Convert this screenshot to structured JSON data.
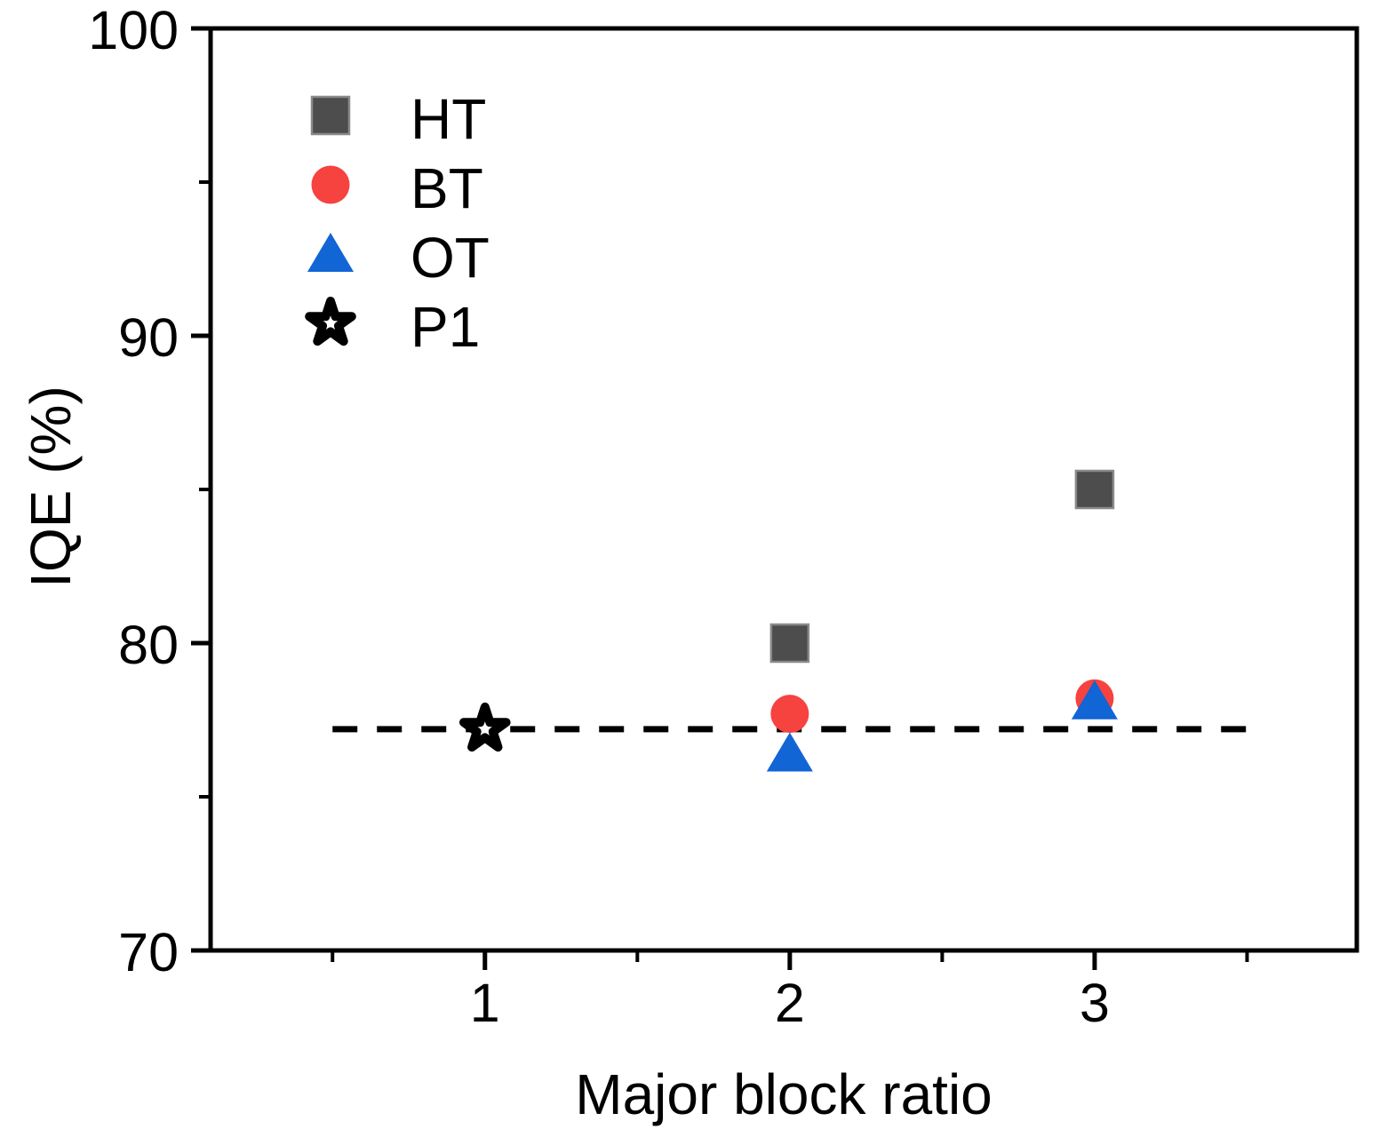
{
  "figure": {
    "background": "#ffffff",
    "axis_color": "#000000"
  },
  "chart_data": {
    "type": "scatter",
    "title": "",
    "xlabel": "Major block ratio",
    "ylabel": "IQE (%)",
    "xlim": [
      0.1,
      3.86
    ],
    "ylim": [
      70,
      100
    ],
    "xticks": [
      1,
      2,
      3
    ],
    "xticks_minor": [
      0.5,
      1.5,
      2.5,
      3.5
    ],
    "yticks": [
      70,
      80,
      90,
      100
    ],
    "yticks_minor": [
      75,
      85,
      95
    ],
    "grid": false,
    "legend_position": "upper-left-inside",
    "series": [
      {
        "name": "HT",
        "marker": "square",
        "color": "#4d4d4d",
        "edge_color": "#8a8a8a",
        "points": [
          [
            2,
            80.0
          ],
          [
            3,
            85.0
          ]
        ]
      },
      {
        "name": "BT",
        "marker": "circle",
        "color": "#f64340",
        "edge_color": "#f64340",
        "points": [
          [
            2,
            77.7
          ],
          [
            3,
            78.2
          ]
        ]
      },
      {
        "name": "OT",
        "marker": "triangle-up",
        "color": "#1165d5",
        "edge_color": "#1165d5",
        "points": [
          [
            2,
            76.4
          ],
          [
            3,
            78.1
          ]
        ]
      },
      {
        "name": "P1",
        "marker": "open-star",
        "color": "#000000",
        "edge_color": "#000000",
        "points": [
          [
            1,
            77.2
          ]
        ]
      }
    ],
    "reference_line": {
      "y": 77.2,
      "x_start": 0.5,
      "x_end": 3.5,
      "style": "dashed",
      "color": "#000000"
    }
  }
}
